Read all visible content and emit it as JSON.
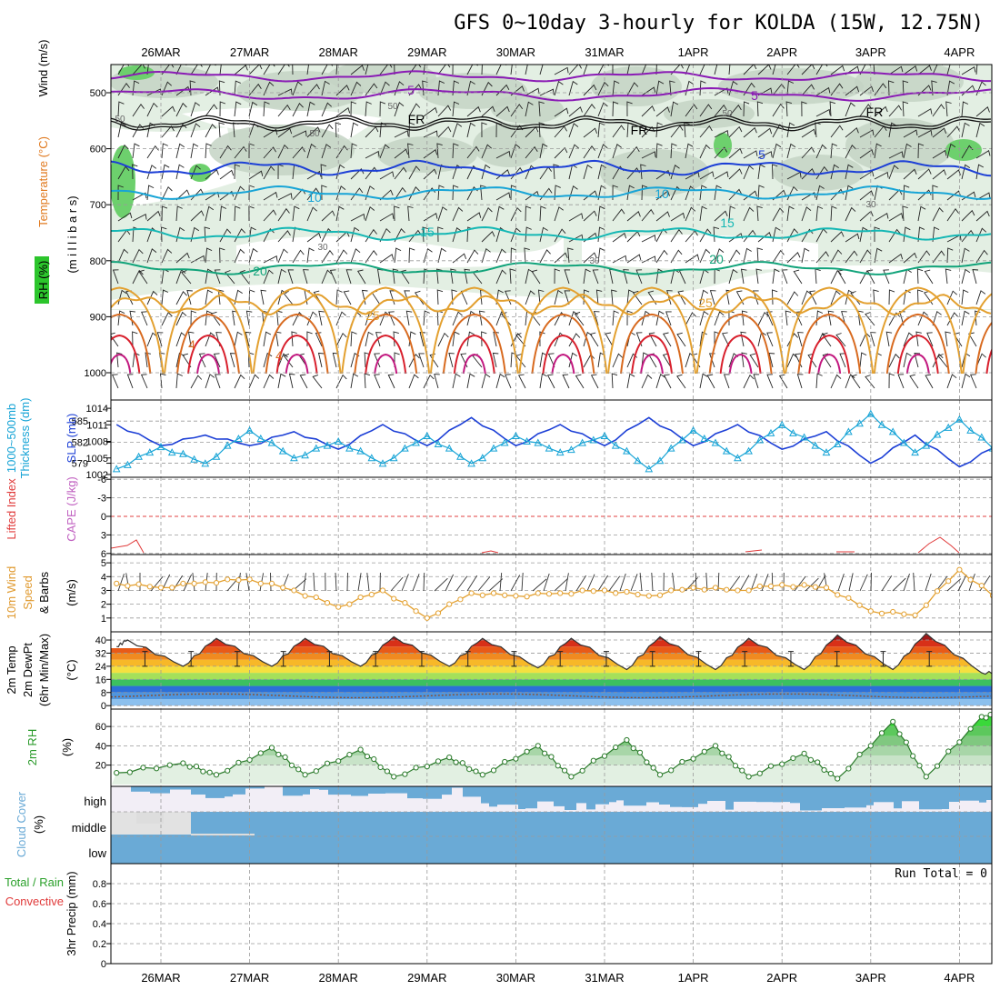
{
  "title": "GFS 0~10day 3-hourly for KOLDA (15W, 12.75N)",
  "dates": [
    "26MAR",
    "27MAR",
    "28MAR",
    "29MAR",
    "30MAR",
    "31MAR",
    "1APR",
    "2APR",
    "3APR",
    "4APR"
  ],
  "colors": {
    "purple": "#8a1bb5",
    "blue": "#1c3fd6",
    "cyan": "#17a4d6",
    "teal": "#14b7b4",
    "green": "#11a37a",
    "orange": "#e3a02f",
    "darkorange": "#d86a1f",
    "red": "#d81f2c",
    "magenta": "#c2187f",
    "rh_light": "#e3efe3",
    "rh_mid": "#c4d4c4",
    "rh_green": "#6dd06d",
    "cloud": "#6aaad6",
    "cloud_bg": "#f2eef6",
    "cape": "#cc4b8a",
    "li": "#e03a3a"
  },
  "panels": {
    "upper": {
      "label_wind": "Wind (m/s)",
      "label_temp": "Temperature (°C)",
      "label_rh": "RH (%)",
      "label_mb": "(m i l l i b a r s)",
      "yticks": [
        "500",
        "600",
        "700",
        "800",
        "900",
        "1000"
      ],
      "contour_labels": [
        {
          "text": "5",
          "color": "purple"
        },
        {
          "text": "5",
          "color": "purple"
        },
        {
          "text": "FR",
          "color": "black"
        },
        {
          "text": "FR",
          "color": "black"
        },
        {
          "text": "FR",
          "color": "black"
        },
        {
          "text": "5",
          "color": "blue"
        },
        {
          "text": "10",
          "color": "cyan"
        },
        {
          "text": "10",
          "color": "cyan"
        },
        {
          "text": "15",
          "color": "teal"
        },
        {
          "text": "15",
          "color": "teal"
        },
        {
          "text": "20",
          "color": "green"
        },
        {
          "text": "20",
          "color": "green"
        },
        {
          "text": "25",
          "color": "orange"
        },
        {
          "text": "25",
          "color": "orange"
        },
        {
          "text": "4",
          "color": "darkorange"
        },
        {
          "text": "4",
          "color": "darkorange"
        },
        {
          "text": "50",
          "color": "gray"
        },
        {
          "text": "50",
          "color": "gray"
        },
        {
          "text": "50",
          "color": "gray"
        },
        {
          "text": "50",
          "color": "gray"
        },
        {
          "text": "30",
          "color": "gray"
        },
        {
          "text": "30",
          "color": "gray"
        },
        {
          "text": "30",
          "color": "gray"
        }
      ]
    },
    "thick": {
      "label_thick": "1000~500mb Thickness (dm)",
      "label_slp": "SLP (mb)",
      "yticks_left": [
        "585",
        "582",
        "579"
      ],
      "yticks_right": [
        "1014",
        "1011",
        "1008",
        "1005",
        "1002"
      ]
    },
    "li": {
      "label_li": "Lifted Index",
      "label_cape": "CAPE (J/kg)",
      "yticks": [
        "-6",
        "-3",
        "0",
        "3",
        "6"
      ]
    },
    "wind10": {
      "label1": "10m Wind",
      "label2": "Speed",
      "label3": "& Barbs",
      "units": "(m/s)",
      "yticks": [
        "5",
        "4",
        "3",
        "2",
        "1"
      ]
    },
    "temp2m": {
      "label1": "2m Temp",
      "label2": "2m DewPt",
      "label3": "(6hr Min/Max)",
      "units": "(°C)",
      "yticks": [
        "40",
        "32",
        "24",
        "16",
        "8",
        "0"
      ]
    },
    "rh2m": {
      "label": "2m RH",
      "units": "(%)",
      "yticks": [
        "60",
        "40",
        "20"
      ]
    },
    "cloud": {
      "label": "Cloud Cover",
      "units": "(%)",
      "levels": [
        "high",
        "middle",
        "low"
      ]
    },
    "precip": {
      "label1": "3hr Precip (mm)",
      "label2": "Total / Rain",
      "label3": "Convective",
      "run_total": "Run Total = 0",
      "yticks": [
        "0.8",
        "0.6",
        "0.4",
        "0.2",
        "0"
      ]
    }
  },
  "chart_data": [
    {
      "type": "line",
      "title": "1000~500mb Thickness (dm) / SLP (mb)",
      "x": [
        "25MAR 12",
        "26MAR 00",
        "26MAR 12",
        "27MAR 00",
        "27MAR 12",
        "28MAR 00",
        "28MAR 12",
        "29MAR 00",
        "29MAR 12",
        "30MAR 00",
        "30MAR 12",
        "31MAR 00",
        "31MAR 12",
        "1APR 00",
        "1APR 12",
        "2APR 00",
        "2APR 12",
        "3APR 00",
        "3APR 12",
        "4APR 00",
        "4APR 12"
      ],
      "series": [
        {
          "name": "1000~500mb Thickness (dm)",
          "values": [
            584.5,
            581.5,
            583,
            581.5,
            583.5,
            581,
            584.5,
            581.5,
            585.5,
            581.5,
            584.5,
            581.5,
            585.5,
            581.5,
            584.5,
            581,
            583.5,
            579,
            583,
            578.5,
            582
          ]
        },
        {
          "name": "SLP (mb)",
          "values": [
            1003,
            1007,
            1004,
            1010,
            1005,
            1008,
            1004,
            1009,
            1004,
            1009,
            1006,
            1009,
            1003,
            1010,
            1005,
            1011,
            1006,
            1013,
            1006,
            1012,
            1005
          ]
        }
      ]
    },
    {
      "type": "line",
      "title": "Lifted Index",
      "x": [
        "25MAR 18",
        "29MAR 15",
        "2APR 12",
        "2APR 18",
        "3APR 18",
        "3APR 21"
      ],
      "values": [
        5,
        6,
        6,
        6,
        5,
        5
      ]
    },
    {
      "type": "line",
      "title": "10m Wind Speed (m/s)",
      "x": [
        "25MAR 12",
        "26MAR 00",
        "26MAR 12",
        "27MAR 00",
        "27MAR 12",
        "28MAR 00",
        "28MAR 12",
        "29MAR 00",
        "29MAR 12",
        "30MAR 00",
        "30MAR 12",
        "31MAR 00",
        "31MAR 12",
        "1APR 00",
        "1APR 12",
        "2APR 00",
        "2APR 12",
        "3APR 00",
        "3APR 12",
        "4APR 00",
        "4APR 12"
      ],
      "values": [
        3.5,
        3.2,
        3.6,
        3.8,
        3.0,
        1.8,
        3.0,
        1.0,
        2.8,
        2.6,
        2.8,
        3.0,
        2.6,
        3.2,
        3.0,
        3.4,
        3.2,
        1.5,
        1.2,
        4.5,
        2.0
      ]
    },
    {
      "type": "area",
      "title": "2m Temp (°C)",
      "x": [
        "25MAR 12",
        "25MAR 15",
        "26MAR 06",
        "26MAR 15",
        "27MAR 06",
        "27MAR 15",
        "28MAR 06",
        "28MAR 15",
        "29MAR 06",
        "29MAR 15",
        "30MAR 06",
        "30MAR 15",
        "31MAR 06",
        "31MAR 15",
        "1APR 06",
        "1APR 15",
        "2APR 06",
        "2APR 15",
        "3APR 06",
        "3APR 15",
        "4APR 06",
        "4APR 12"
      ],
      "values": [
        36,
        40,
        24,
        41,
        24,
        41,
        24,
        42,
        24,
        41,
        23,
        41,
        22,
        42,
        22,
        41,
        22,
        43,
        22,
        44,
        20,
        20
      ]
    },
    {
      "type": "area",
      "title": "2m RH (%)",
      "x": [
        "25MAR 12",
        "26MAR 06",
        "26MAR 15",
        "27MAR 06",
        "27MAR 15",
        "28MAR 06",
        "28MAR 15",
        "29MAR 06",
        "29MAR 15",
        "30MAR 06",
        "30MAR 15",
        "31MAR 06",
        "31MAR 15",
        "1APR 06",
        "1APR 15",
        "2APR 06",
        "2APR 15",
        "3APR 06",
        "3APR 15",
        "4APR 06",
        "4APR 12"
      ],
      "values": [
        12,
        22,
        10,
        38,
        10,
        36,
        8,
        28,
        10,
        40,
        8,
        46,
        10,
        40,
        8,
        32,
        6,
        65,
        8,
        70,
        72
      ]
    },
    {
      "type": "line",
      "title": "3hr Precip (mm)",
      "ylim": [
        0,
        1
      ],
      "run_total": 0
    }
  ]
}
